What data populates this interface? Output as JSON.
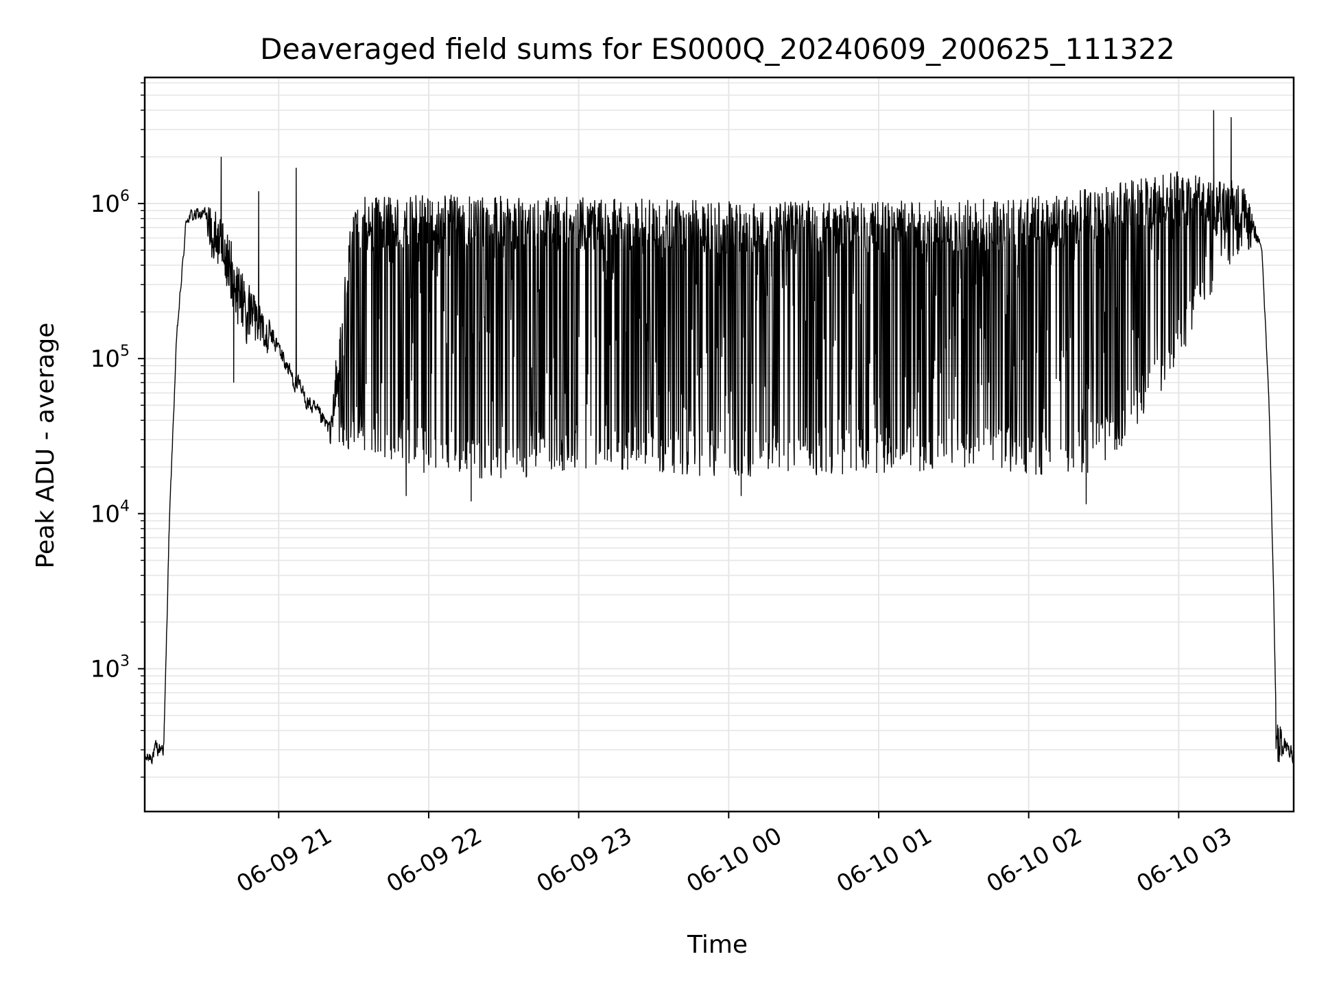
{
  "chart_data": {
    "type": "line",
    "title": "Deaveraged field sums for ES000Q_20240609_200625_111322",
    "xlabel": "Time",
    "ylabel": "Peak ADU - average",
    "yscale": "log",
    "ylim": [
      120,
      6500000
    ],
    "xlim": [
      "2024-06-09 20:06:25",
      "2024-06-10 03:46:00"
    ],
    "grid": true,
    "legend": "none",
    "line_color": "#000000",
    "grid_color": "#e6e6e6",
    "x_ticks": [
      {
        "time": "2024-06-09 21:00:00",
        "label": "06-09 21"
      },
      {
        "time": "2024-06-09 22:00:00",
        "label": "06-09 22"
      },
      {
        "time": "2024-06-09 23:00:00",
        "label": "06-09 23"
      },
      {
        "time": "2024-06-10 00:00:00",
        "label": "06-10 00"
      },
      {
        "time": "2024-06-10 01:00:00",
        "label": "06-10 01"
      },
      {
        "time": "2024-06-10 02:00:00",
        "label": "06-10 02"
      },
      {
        "time": "2024-06-10 03:00:00",
        "label": "06-10 03"
      }
    ],
    "y_ticks": [
      {
        "value": 1000,
        "base": "10",
        "exp": "3"
      },
      {
        "value": 10000,
        "base": "10",
        "exp": "4"
      },
      {
        "value": 100000,
        "base": "10",
        "exp": "5"
      },
      {
        "value": 1000000,
        "base": "10",
        "exp": "6"
      }
    ],
    "series": [
      {
        "envelope_upper": [
          [
            "2024-06-09 20:06:25",
            300
          ],
          [
            "2024-06-09 20:14:00",
            420
          ],
          [
            "2024-06-09 20:16:00",
            9000
          ],
          [
            "2024-06-09 20:19:00",
            150000
          ],
          [
            "2024-06-09 20:23:00",
            950000
          ],
          [
            "2024-06-09 20:30:00",
            1050000
          ],
          [
            "2024-06-09 20:35:00",
            900000
          ],
          [
            "2024-06-09 20:40:00",
            650000
          ],
          [
            "2024-06-09 20:45:00",
            400000
          ],
          [
            "2024-06-09 20:50:00",
            260000
          ],
          [
            "2024-06-09 20:55:00",
            200000
          ],
          [
            "2024-06-09 21:00:00",
            150000
          ],
          [
            "2024-06-09 21:05:00",
            100000
          ],
          [
            "2024-06-09 21:10:00",
            72000
          ],
          [
            "2024-06-09 21:15:00",
            55000
          ],
          [
            "2024-06-09 21:20:00",
            45000
          ],
          [
            "2024-06-09 21:30:00",
            1100000
          ],
          [
            "2024-06-09 22:00:00",
            1150000
          ],
          [
            "2024-06-09 23:00:00",
            1100000
          ],
          [
            "2024-06-10 00:00:00",
            1050000
          ],
          [
            "2024-06-10 01:00:00",
            1050000
          ],
          [
            "2024-06-10 02:00:00",
            1100000
          ],
          [
            "2024-06-10 02:30:00",
            1300000
          ],
          [
            "2024-06-10 03:00:00",
            1650000
          ],
          [
            "2024-06-10 03:15:00",
            1400000
          ],
          [
            "2024-06-10 03:25:00",
            1500000
          ],
          [
            "2024-06-10 03:33:00",
            600000
          ],
          [
            "2024-06-10 03:36:00",
            60000
          ],
          [
            "2024-06-10 03:38:00",
            2500
          ],
          [
            "2024-06-10 03:39:00",
            500
          ],
          [
            "2024-06-10 03:46:00",
            320
          ]
        ],
        "envelope_lower": [
          [
            "2024-06-09 20:06:25",
            220
          ],
          [
            "2024-06-09 20:14:00",
            250
          ],
          [
            "2024-06-09 20:16:00",
            7000
          ],
          [
            "2024-06-09 20:19:00",
            120000
          ],
          [
            "2024-06-09 20:23:00",
            700000
          ],
          [
            "2024-06-09 20:30:00",
            700000
          ],
          [
            "2024-06-09 20:35:00",
            350000
          ],
          [
            "2024-06-09 20:40:00",
            250000
          ],
          [
            "2024-06-09 20:45:00",
            120000
          ],
          [
            "2024-06-09 20:50:00",
            130000
          ],
          [
            "2024-06-09 20:55:00",
            110000
          ],
          [
            "2024-06-09 21:00:00",
            90000
          ],
          [
            "2024-06-09 21:05:00",
            60000
          ],
          [
            "2024-06-09 21:10:00",
            45000
          ],
          [
            "2024-06-09 21:15:00",
            35000
          ],
          [
            "2024-06-09 21:20:00",
            28000
          ],
          [
            "2024-06-09 21:40:00",
            22000
          ],
          [
            "2024-06-09 22:00:00",
            18000
          ],
          [
            "2024-06-09 22:30:00",
            16000
          ],
          [
            "2024-06-09 23:00:00",
            19000
          ],
          [
            "2024-06-10 00:00:00",
            17000
          ],
          [
            "2024-06-10 01:00:00",
            18000
          ],
          [
            "2024-06-10 02:00:00",
            18000
          ],
          [
            "2024-06-10 02:20:00",
            15000
          ],
          [
            "2024-06-10 02:40:00",
            30000
          ],
          [
            "2024-06-10 03:00:00",
            90000
          ],
          [
            "2024-06-10 03:15:00",
            300000
          ],
          [
            "2024-06-10 03:25:00",
            500000
          ],
          [
            "2024-06-10 03:33:00",
            500000
          ],
          [
            "2024-06-10 03:36:00",
            50000
          ],
          [
            "2024-06-10 03:38:00",
            2000
          ],
          [
            "2024-06-10 03:39:00",
            250
          ],
          [
            "2024-06-10 03:46:00",
            230
          ]
        ],
        "spikes": [
          {
            "time": "2024-06-09 20:37:00",
            "value": 2000000
          },
          {
            "time": "2024-06-09 20:52:00",
            "value": 1200000
          },
          {
            "time": "2024-06-09 21:07:00",
            "value": 1700000
          },
          {
            "time": "2024-06-10 03:14:00",
            "value": 4000000
          },
          {
            "time": "2024-06-10 03:21:00",
            "value": 3600000
          }
        ],
        "dips": [
          {
            "time": "2024-06-09 20:42:00",
            "value": 70000
          },
          {
            "time": "2024-06-09 21:51:00",
            "value": 13000
          },
          {
            "time": "2024-06-09 22:17:00",
            "value": 12000
          },
          {
            "time": "2024-06-10 00:05:00",
            "value": 13000
          },
          {
            "time": "2024-06-10 02:23:00",
            "value": 11500
          }
        ]
      }
    ]
  }
}
